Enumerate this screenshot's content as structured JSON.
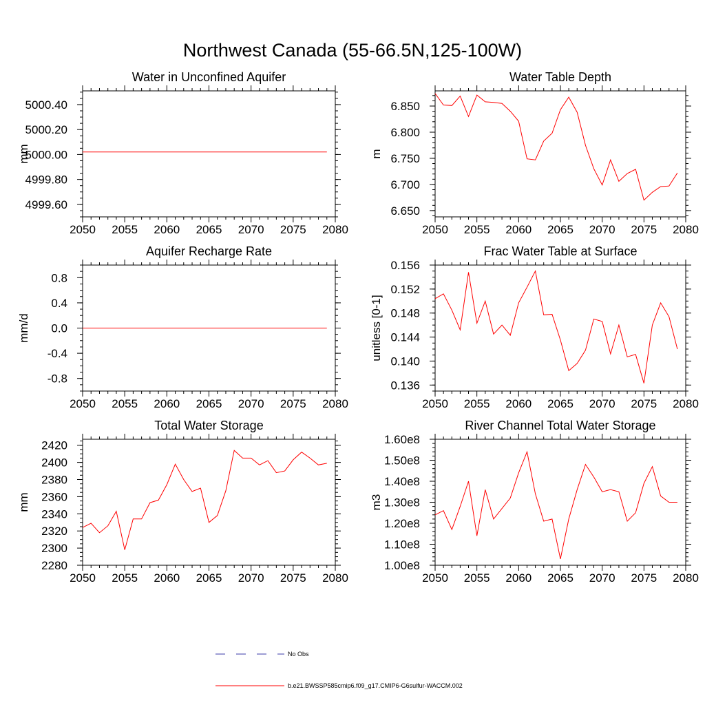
{
  "figure": {
    "title": "Northwest Canada (55-66.5N,125-100W)",
    "legend": {
      "entries": [
        {
          "label": "No Obs",
          "style": "dashed",
          "color": "#3a3aa8"
        },
        {
          "label": "b.e21.BWSSP585cmip6.f09_g17.CMIP6-G6sulfur-WACCM.002",
          "style": "solid",
          "color": "#ff0000"
        }
      ]
    }
  },
  "chart_data": [
    {
      "type": "line",
      "title": "Water in Unconfined Aquifer",
      "xlabel": "",
      "ylabel": "mm",
      "xlim": [
        2050,
        2080
      ],
      "ylim": [
        4999.5,
        5000.51
      ],
      "xticks": [
        2050,
        2055,
        2060,
        2065,
        2070,
        2075,
        2080
      ],
      "xtick_labels": [
        "2050",
        "2055",
        "2060",
        "2065",
        "2070",
        "2075",
        "2080"
      ],
      "yticks": [
        4999.6,
        4999.8,
        5000.0,
        5000.2,
        5000.4
      ],
      "ytick_labels": [
        "4999.60",
        "4999.80",
        "5000.00",
        "5000.20",
        "5000.40"
      ],
      "yminor": 0.05,
      "series": [
        {
          "color": "#ff0000",
          "x": [
            2050,
            2079
          ],
          "y": [
            5000.02,
            5000.02
          ]
        }
      ]
    },
    {
      "type": "line",
      "title": "Water Table Depth",
      "xlabel": "",
      "ylabel": "m",
      "xlim": [
        2050,
        2080
      ],
      "ylim": [
        6.638,
        6.879
      ],
      "xticks": [
        2050,
        2055,
        2060,
        2065,
        2070,
        2075,
        2080
      ],
      "xtick_labels": [
        "2050",
        "2055",
        "2060",
        "2065",
        "2070",
        "2075",
        "2080"
      ],
      "yticks": [
        6.65,
        6.7,
        6.75,
        6.8,
        6.85
      ],
      "ytick_labels": [
        "6.650",
        "6.700",
        "6.750",
        "6.800",
        "6.850"
      ],
      "yminor": 0.01,
      "series": [
        {
          "color": "#ff0000",
          "x": [
            2050,
            2051,
            2052,
            2053,
            2054,
            2055,
            2056,
            2057,
            2058,
            2059,
            2060,
            2061,
            2062,
            2063,
            2064,
            2065,
            2066,
            2067,
            2068,
            2069,
            2070,
            2071,
            2072,
            2073,
            2074,
            2075,
            2076,
            2077,
            2078,
            2079
          ],
          "y": [
            6.874,
            6.852,
            6.851,
            6.869,
            6.83,
            6.871,
            6.858,
            6.857,
            6.855,
            6.84,
            6.821,
            6.749,
            6.747,
            6.783,
            6.798,
            6.843,
            6.867,
            6.838,
            6.775,
            6.73,
            6.699,
            6.747,
            6.706,
            6.721,
            6.729,
            6.67,
            6.685,
            6.696,
            6.697,
            6.722
          ]
        }
      ]
    },
    {
      "type": "line",
      "title": "Aquifer Recharge Rate",
      "xlabel": "",
      "ylabel": "mm/d",
      "xlim": [
        2050,
        2080
      ],
      "ylim": [
        -1.0,
        1.0
      ],
      "xticks": [
        2050,
        2055,
        2060,
        2065,
        2070,
        2075,
        2080
      ],
      "xtick_labels": [
        "2050",
        "2055",
        "2060",
        "2065",
        "2070",
        "2075",
        "2080"
      ],
      "yticks": [
        -0.8,
        -0.4,
        0.0,
        0.4,
        0.8
      ],
      "ytick_labels": [
        "-0.8",
        "-0.4",
        "0.0",
        "0.4",
        "0.8"
      ],
      "yminor": 0.1,
      "series": [
        {
          "color": "#ff0000",
          "x": [
            2050,
            2079
          ],
          "y": [
            0.0,
            0.0
          ]
        }
      ]
    },
    {
      "type": "line",
      "title": "Frac Water Table at Surface",
      "xlabel": "",
      "ylabel": "unitless [0-1]",
      "xlim": [
        2050,
        2080
      ],
      "ylim": [
        0.135,
        0.156
      ],
      "xticks": [
        2050,
        2055,
        2060,
        2065,
        2070,
        2075,
        2080
      ],
      "xtick_labels": [
        "2050",
        "2055",
        "2060",
        "2065",
        "2070",
        "2075",
        "2080"
      ],
      "yticks": [
        0.136,
        0.14,
        0.144,
        0.148,
        0.152,
        0.156
      ],
      "ytick_labels": [
        "0.136",
        "0.140",
        "0.144",
        "0.148",
        "0.152",
        "0.156"
      ],
      "yminor": 0.001,
      "series": [
        {
          "color": "#ff0000",
          "x": [
            2050,
            2051,
            2052,
            2053,
            2054,
            2055,
            2056,
            2057,
            2058,
            2059,
            2060,
            2061,
            2062,
            2063,
            2064,
            2065,
            2066,
            2067,
            2068,
            2069,
            2070,
            2071,
            2072,
            2073,
            2074,
            2075,
            2076,
            2077,
            2078,
            2079
          ],
          "y": [
            0.1504,
            0.1512,
            0.1485,
            0.1452,
            0.1548,
            0.1463,
            0.15,
            0.1445,
            0.146,
            0.1443,
            0.1497,
            0.1523,
            0.155,
            0.1477,
            0.1478,
            0.1435,
            0.1384,
            0.1396,
            0.1418,
            0.147,
            0.1466,
            0.1412,
            0.146,
            0.1407,
            0.1411,
            0.1363,
            0.146,
            0.1497,
            0.1474,
            0.142
          ]
        }
      ]
    },
    {
      "type": "line",
      "title": "Total Water Storage",
      "xlabel": "",
      "ylabel": "mm",
      "xlim": [
        2050,
        2080
      ],
      "ylim": [
        2280,
        2427
      ],
      "xticks": [
        2050,
        2055,
        2060,
        2065,
        2070,
        2075,
        2080
      ],
      "xtick_labels": [
        "2050",
        "2055",
        "2060",
        "2065",
        "2070",
        "2075",
        "2080"
      ],
      "yticks": [
        2280,
        2300,
        2320,
        2340,
        2360,
        2380,
        2400,
        2420
      ],
      "ytick_labels": [
        "2280",
        "2300",
        "2320",
        "2340",
        "2360",
        "2380",
        "2400",
        "2420"
      ],
      "yminor": 5,
      "series": [
        {
          "color": "#ff0000",
          "x": [
            2050,
            2051,
            2052,
            2053,
            2054,
            2055,
            2056,
            2057,
            2058,
            2059,
            2060,
            2061,
            2062,
            2063,
            2064,
            2065,
            2066,
            2067,
            2068,
            2069,
            2070,
            2071,
            2072,
            2073,
            2074,
            2075,
            2076,
            2077,
            2078,
            2079
          ],
          "y": [
            2324,
            2329,
            2318,
            2326,
            2343,
            2298,
            2334,
            2334,
            2353,
            2356,
            2374,
            2398,
            2380,
            2366,
            2370,
            2330,
            2338,
            2367,
            2414,
            2405,
            2405,
            2397,
            2402,
            2388,
            2390,
            2403,
            2412,
            2405,
            2397,
            2399
          ]
        }
      ]
    },
    {
      "type": "line",
      "title": "River Channel Total Water Storage",
      "xlabel": "",
      "ylabel": "m3",
      "xlim": [
        2050,
        2080
      ],
      "ylim": [
        1.0,
        1.6
      ],
      "xticks": [
        2050,
        2055,
        2060,
        2065,
        2070,
        2075,
        2080
      ],
      "xtick_labels": [
        "2050",
        "2055",
        "2060",
        "2065",
        "2070",
        "2075",
        "2080"
      ],
      "yticks": [
        1.0,
        1.1,
        1.2,
        1.3,
        1.4,
        1.5,
        1.6
      ],
      "ytick_labels": [
        "1.00e8",
        "1.10e8",
        "1.20e8",
        "1.30e8",
        "1.40e8",
        "1.50e8",
        "1.60e8"
      ],
      "yminor": 0.02,
      "series": [
        {
          "color": "#ff0000",
          "x": [
            2050,
            2051,
            2052,
            2053,
            2054,
            2055,
            2056,
            2057,
            2058,
            2059,
            2060,
            2061,
            2062,
            2063,
            2064,
            2065,
            2066,
            2067,
            2068,
            2069,
            2070,
            2071,
            2072,
            2073,
            2074,
            2075,
            2076,
            2077,
            2078,
            2079
          ],
          "y": [
            1.24,
            1.26,
            1.17,
            1.28,
            1.4,
            1.14,
            1.36,
            1.22,
            1.27,
            1.32,
            1.44,
            1.54,
            1.34,
            1.21,
            1.22,
            1.03,
            1.22,
            1.36,
            1.48,
            1.42,
            1.35,
            1.36,
            1.35,
            1.21,
            1.25,
            1.39,
            1.47,
            1.33,
            1.3,
            1.3
          ]
        }
      ]
    }
  ]
}
